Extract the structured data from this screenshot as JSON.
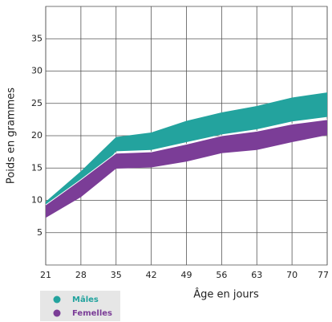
{
  "chart_data": {
    "type": "band",
    "x_label": "Âge en jours",
    "y_label": "Poids en grammes",
    "x": [
      21,
      28,
      35,
      42,
      49,
      56,
      63,
      70,
      77
    ],
    "xlim": [
      21,
      77
    ],
    "xticks": [
      21,
      28,
      35,
      42,
      49,
      56,
      63,
      70,
      77
    ],
    "ylim": [
      0,
      40
    ],
    "yticks": [
      5,
      10,
      15,
      20,
      25,
      30,
      35
    ],
    "grid": true,
    "overlap_color": "#1b7ec2",
    "legend": "bottom-left",
    "series": [
      {
        "name": "Mâles",
        "color": "#23a39e",
        "upper": [
          9.8,
          14.5,
          19.8,
          20.5,
          22.3,
          23.6,
          24.6,
          25.9,
          26.7
        ],
        "lower": [
          7.8,
          11,
          17.6,
          17.8,
          19,
          20.2,
          21,
          22.2,
          22.9
        ]
      },
      {
        "name": "Femelles",
        "color": "#7b3d97",
        "upper": [
          9.3,
          13.2,
          17.3,
          17.5,
          18.7,
          20,
          20.7,
          21.8,
          22.5
        ],
        "lower": [
          7.3,
          10.5,
          14.9,
          15.1,
          16,
          17.3,
          17.8,
          19,
          20.1
        ]
      }
    ]
  }
}
